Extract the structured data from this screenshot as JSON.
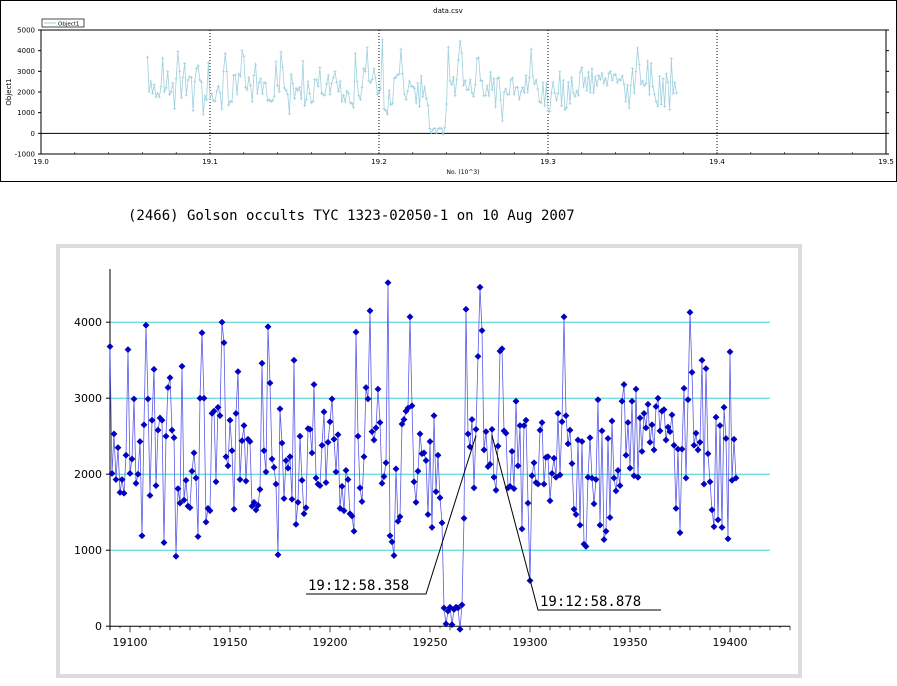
{
  "top_chart": {
    "title": "data.csv",
    "legend": "Object1",
    "ylabel": "Object1",
    "xlabel": "No. (10^3)",
    "x_ticks": [
      "19.0",
      "19.1",
      "19.2",
      "19.3",
      "19.4",
      "19.5"
    ],
    "y_ticks": [
      "5000",
      "4000",
      "3000",
      "2000",
      "1000",
      "0",
      "-1000"
    ]
  },
  "caption": "(2466) Golson occults TYC 1323-02050-1 on 10 Aug 2007",
  "annotations": {
    "disappearance": "19:12:58.358",
    "reappearance": "19:12:58.878"
  },
  "colors": {
    "top_series": "#9fd0dd",
    "bottom_series": "#0000cc",
    "bottom_line": "#5a5ae6",
    "gridline": "#40d0d0"
  },
  "chart_data": [
    {
      "type": "line",
      "title": "data.csv",
      "xlabel": "No. (10^3)",
      "ylabel": "Object1",
      "xlim": [
        19.0,
        19.5
      ],
      "ylim": [
        -1000,
        5000
      ],
      "series": [
        {
          "name": "Object1"
        }
      ],
      "grid": true,
      "legend": "top-left"
    },
    {
      "type": "scatter",
      "xlim": [
        19090,
        19430
      ],
      "ylim": [
        -50,
        4700
      ],
      "x_ticks": [
        19100,
        19150,
        19200,
        19250,
        19300,
        19350,
        19400
      ],
      "y_ticks": [
        0,
        1000,
        2000,
        3000,
        4000
      ],
      "x_start": 19090,
      "x_step": 1,
      "values": [
        3680,
        2010,
        2530,
        1930,
        2350,
        1760,
        1930,
        1750,
        2250,
        3640,
        2010,
        2200,
        2990,
        1880,
        2000,
        2430,
        1190,
        2650,
        3960,
        2990,
        1720,
        2710,
        3380,
        1850,
        2580,
        2740,
        2710,
        1100,
        2500,
        3140,
        3270,
        2580,
        2480,
        920,
        1810,
        1620,
        3420,
        1660,
        1920,
        1580,
        1560,
        2040,
        2280,
        1950,
        1180,
        3000,
        3860,
        3000,
        1370,
        1550,
        1520,
        2800,
        2830,
        1900,
        2880,
        2770,
        4000,
        3730,
        2230,
        2110,
        2710,
        2310,
        1540,
        2800,
        3350,
        1930,
        2440,
        2640,
        1910,
        2460,
        2430,
        1580,
        1630,
        1530,
        1590,
        1800,
        3460,
        2310,
        2030,
        3940,
        3200,
        2200,
        2090,
        1870,
        940,
        2860,
        2410,
        1680,
        2180,
        2080,
        2230,
        1670,
        3500,
        1340,
        1630,
        2500,
        1920,
        1480,
        1560,
        2600,
        2590,
        2280,
        3180,
        1950,
        1870,
        1850,
        2380,
        2820,
        1890,
        2420,
        2690,
        2990,
        2460,
        2030,
        2520,
        1550,
        1840,
        1520,
        2050,
        1930,
        1480,
        1450,
        1250,
        3870,
        2500,
        1820,
        1640,
        2230,
        3140,
        2990,
        4150,
        2560,
        2450,
        2610,
        3120,
        2680,
        1880,
        1970,
        2150,
        4520,
        1190,
        1110,
        930,
        2070,
        1380,
        1440,
        2660,
        2720,
        2830,
        2870,
        4070,
        2900,
        1900,
        1630,
        2040,
        2530,
        2270,
        2280,
        2180,
        1470,
        2430,
        1300,
        2770,
        1770,
        2250,
        1690,
        1360,
        240,
        30,
        200,
        250,
        20,
        220,
        250,
        240,
        -40,
        280,
        1420,
        4170,
        2530,
        2360,
        2720,
        1820,
        2590,
        3550,
        4460,
        3890,
        2320,
        2560,
        2100,
        2130,
        2590,
        1960,
        1790,
        2370,
        3620,
        3650,
        2570,
        2540,
        1820,
        1840,
        2300,
        1810,
        2960,
        2110,
        2640,
        1280,
        2640,
        2710,
        1620,
        600,
        1980,
        2150,
        1890,
        1870,
        2580,
        2680,
        1870,
        2220,
        2230,
        1650,
        2010,
        2210,
        1960,
        2800,
        1990,
        2690,
        4070,
        2770,
        2400,
        2580,
        2140,
        1540,
        1470,
        2450,
        1330,
        2430,
        1080,
        1050,
        1960,
        2480,
        1950,
        1610,
        1930,
        2980,
        1330,
        2570,
        1140,
        1250,
        2470,
        1430,
        2700,
        1950,
        1780,
        2050,
        1850,
        2960,
        3180,
        2250,
        2680,
        2080,
        2960,
        1980,
        3120,
        1960,
        2740,
        2300,
        2800,
        2610,
        2920,
        2420,
        2650,
        2320,
        2890,
        3000,
        2570,
        2830,
        2850,
        2450,
        2620,
        2560,
        2780,
        2380,
        1550,
        2330,
        1230,
        2330,
        3130,
        1950,
        2980,
        4130,
        3340,
        2380,
        2540,
        2320,
        2420,
        3500,
        1870,
        3390,
        2270,
        1900,
        1530,
        1310,
        2750,
        1400,
        2640,
        1300,
        2880,
        2470,
        1150,
        3610,
        1920,
        2460,
        1950
      ]
    }
  ]
}
